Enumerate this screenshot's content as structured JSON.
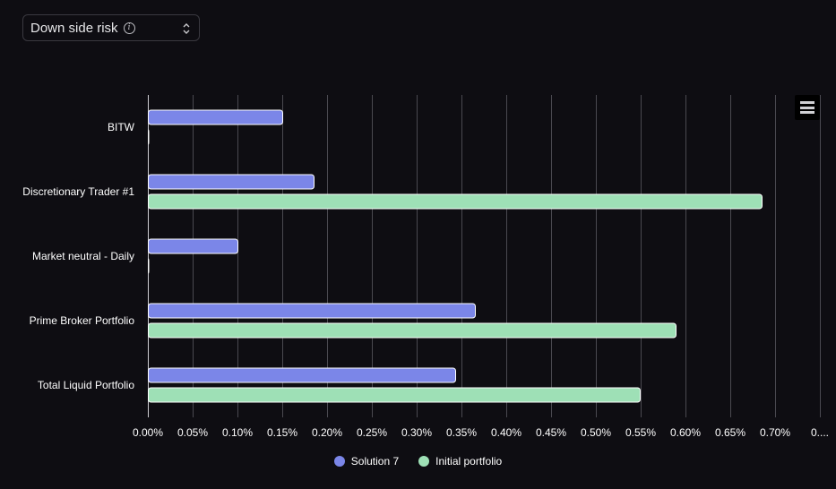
{
  "selector": {
    "label": "Down side risk",
    "info_icon": "info-icon",
    "toggle_icon": "updown-chevron-icon"
  },
  "menu": {
    "icon": "hamburger-menu-icon"
  },
  "colors": {
    "background": "#0e0d12",
    "grid": "#4a4950",
    "series_1": "#7b86e8",
    "series_2": "#9ee0b6",
    "bar_border": "#ffffff",
    "text": "#ffffff"
  },
  "chart_data": {
    "type": "bar",
    "orientation": "horizontal",
    "categories": [
      "BITW",
      "Discretionary Trader #1",
      "Market neutral - Daily",
      "Prime Broker Portfolio",
      "Total Liquid Portfolio"
    ],
    "series": [
      {
        "name": "Solution 7",
        "values": [
          0.15,
          0.185,
          0.1,
          0.365,
          0.343
        ]
      },
      {
        "name": "Initial portfolio",
        "values": [
          0.0,
          0.685,
          0.0,
          0.589,
          0.549
        ]
      }
    ],
    "x_ticks": [
      "0.00%",
      "0.05%",
      "0.10%",
      "0.15%",
      "0.20%",
      "0.25%",
      "0.30%",
      "0.35%",
      "0.40%",
      "0.45%",
      "0.50%",
      "0.55%",
      "0.60%",
      "0.65%",
      "0.70%",
      "0...."
    ],
    "xlim": [
      0,
      0.75
    ],
    "tick_step": 0.05,
    "grid": true,
    "legend_position": "bottom-center",
    "title": "",
    "xlabel": "",
    "ylabel": ""
  }
}
